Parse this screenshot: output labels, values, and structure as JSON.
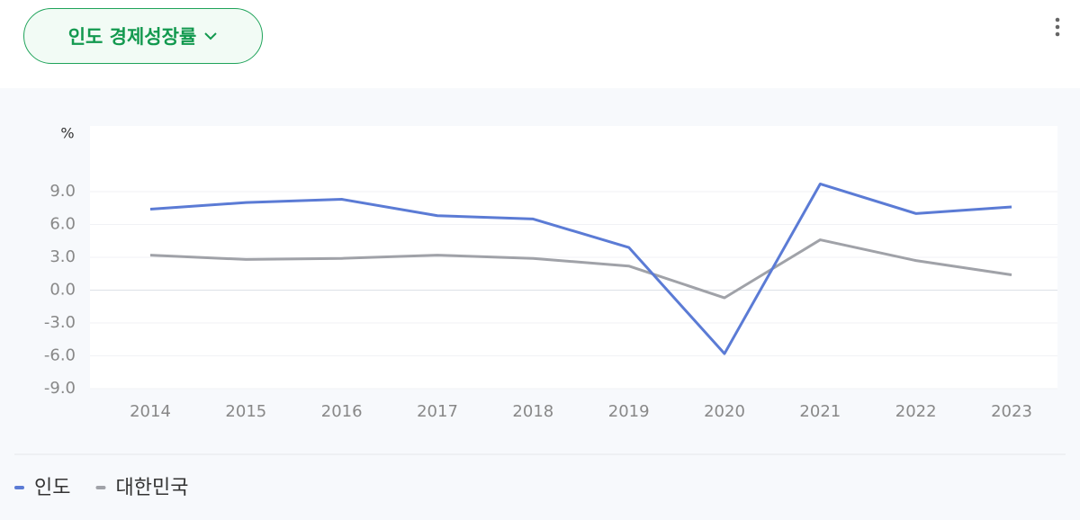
{
  "header": {
    "title": "인도 경제성장률"
  },
  "chart_data": {
    "type": "line",
    "y_label": "%",
    "categories": [
      "2014",
      "2015",
      "2016",
      "2017",
      "2018",
      "2019",
      "2020",
      "2021",
      "2022",
      "2023"
    ],
    "series": [
      {
        "name": "인도",
        "color": "#5b7bd5",
        "values": [
          7.4,
          8.0,
          8.3,
          6.8,
          6.5,
          3.9,
          -5.8,
          9.7,
          7.0,
          7.6
        ]
      },
      {
        "name": "대한민국",
        "color": "#a0a2a8",
        "values": [
          3.2,
          2.8,
          2.9,
          3.2,
          2.9,
          2.2,
          -0.7,
          4.6,
          2.7,
          1.4
        ]
      }
    ],
    "ylim": [
      -9,
      15
    ],
    "yticks": [
      {
        "value": -9,
        "label": "-9.0"
      },
      {
        "value": -6,
        "label": "-6.0"
      },
      {
        "value": -3,
        "label": "-3.0"
      },
      {
        "value": 0,
        "label": "0.0"
      },
      {
        "value": 3,
        "label": "3.0"
      },
      {
        "value": 6,
        "label": "6.0"
      },
      {
        "value": 9,
        "label": "9.0"
      }
    ],
    "grid": true
  }
}
